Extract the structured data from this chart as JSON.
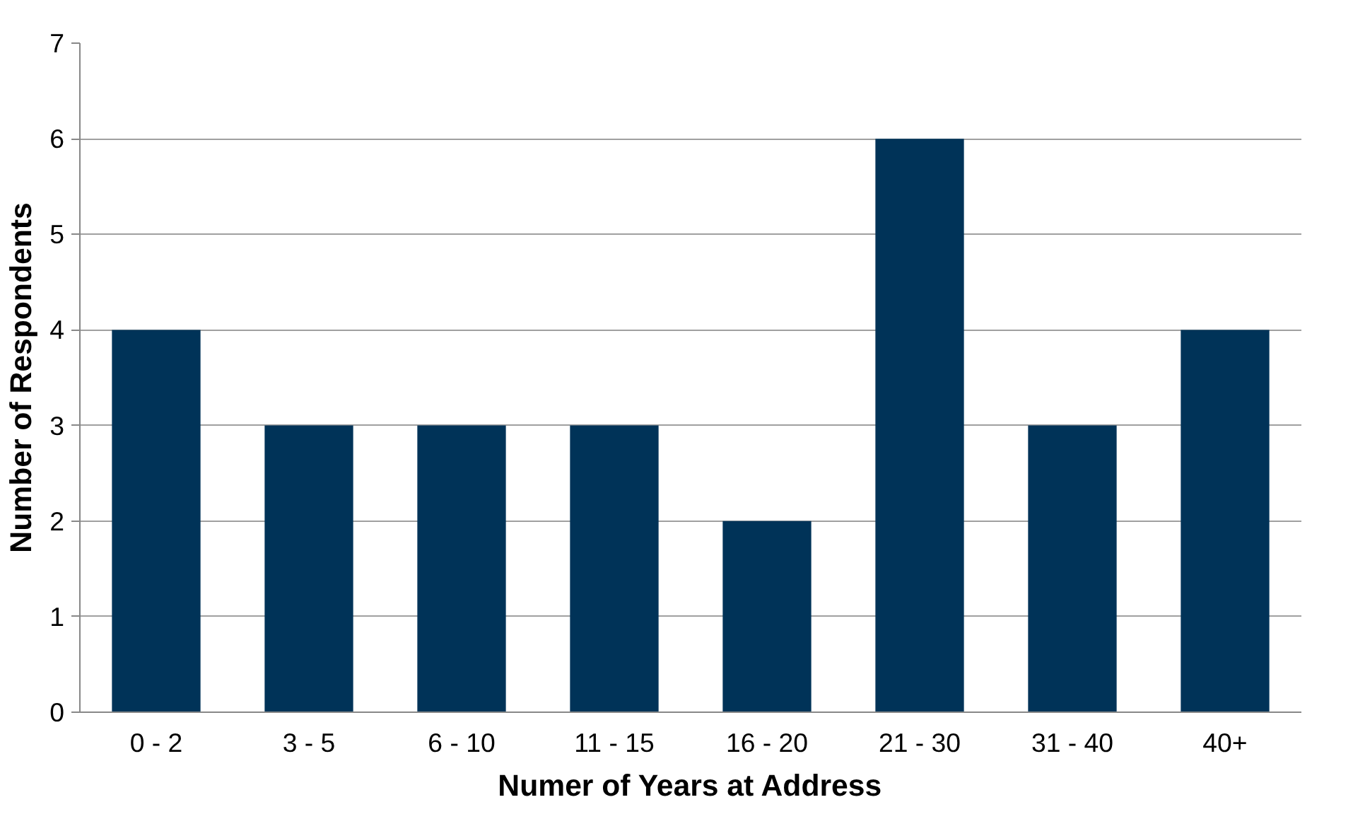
{
  "chart_data": {
    "type": "bar",
    "xlabel": "Numer of Years at Address",
    "ylabel": "Number of Respondents",
    "categories": [
      "0 - 2",
      "3 - 5",
      "6 - 10",
      "11 - 15",
      "16 - 20",
      "21 - 30",
      "31 - 40",
      "40+"
    ],
    "values": [
      4,
      3,
      3,
      3,
      2,
      6,
      3,
      4
    ],
    "color": "#003358",
    "ylim": [
      0,
      7
    ],
    "yticks": [
      0,
      1,
      2,
      3,
      4,
      5,
      6,
      7
    ],
    "grid": "y"
  }
}
